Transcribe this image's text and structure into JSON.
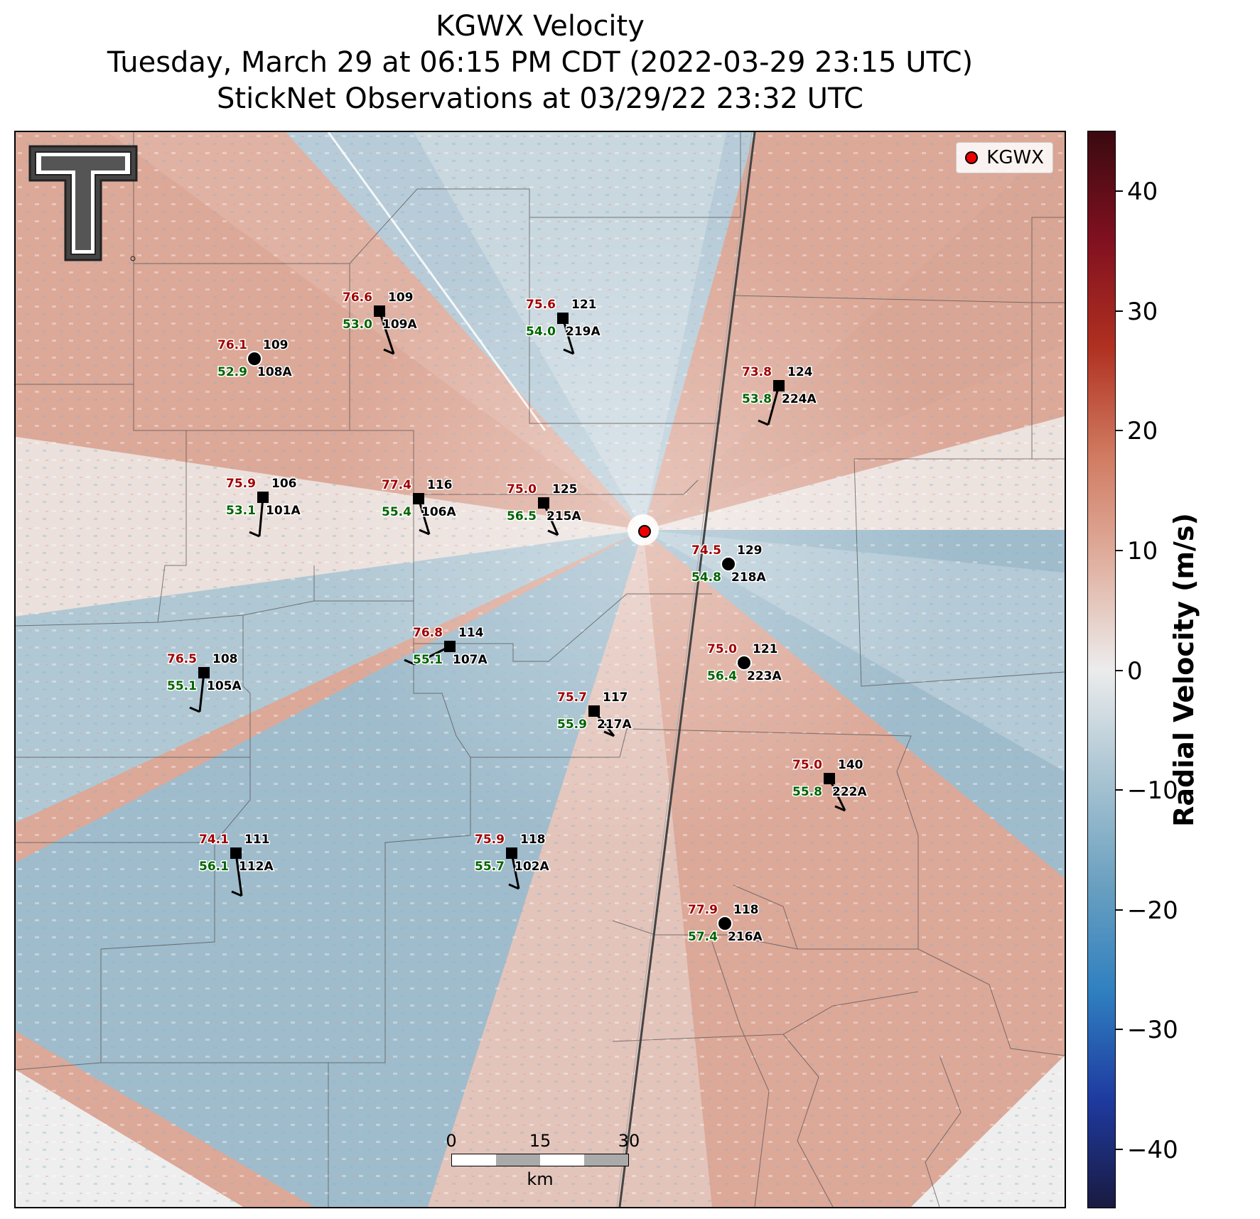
{
  "title": {
    "line1": "KGWX Velocity",
    "line2": "Tuesday, March 29 at 06:15 PM CDT (2022-03-29 23:15 UTC)",
    "line3": "StickNet Observations at 03/29/22 23:32 UTC"
  },
  "legend": {
    "radar_label": "KGWX",
    "marker_color": "#ee0000"
  },
  "colorbar": {
    "label": "Radial Velocity (m/s)",
    "min": -45,
    "max": 45,
    "ticks": [
      "40",
      "30",
      "20",
      "10",
      "0",
      "−10",
      "−20",
      "−30",
      "−40"
    ],
    "tick_values": [
      40,
      30,
      20,
      10,
      0,
      -10,
      -20,
      -30,
      -40
    ],
    "colors": [
      "#1a1a40",
      "#1e3aa0",
      "#2f7fc0",
      "#6aa0c0",
      "#a9c4d2",
      "#ececec",
      "#e0b0a0",
      "#d07a60",
      "#b03020",
      "#801020",
      "#3a0a10"
    ]
  },
  "scale_bar": {
    "labels": [
      "0",
      "15",
      "30"
    ],
    "unit": "km"
  },
  "stations": [
    {
      "id": "109A",
      "temp": "76.6",
      "dew": "53.0",
      "val": "109",
      "marker": "square"
    },
    {
      "id": "219A",
      "temp": "75.6",
      "dew": "54.0",
      "val": "121",
      "marker": "square"
    },
    {
      "id": "108A",
      "temp": "76.1",
      "dew": "52.9",
      "val": "109",
      "marker": "circle"
    },
    {
      "id": "224A",
      "temp": "73.8",
      "dew": "53.8",
      "val": "124",
      "marker": "square"
    },
    {
      "id": "101A",
      "temp": "75.9",
      "dew": "53.1",
      "val": "106",
      "marker": "square"
    },
    {
      "id": "106A",
      "temp": "77.4",
      "dew": "55.4",
      "val": "116",
      "marker": "square"
    },
    {
      "id": "215A",
      "temp": "75.0",
      "dew": "56.5",
      "val": "125",
      "marker": "square"
    },
    {
      "id": "218A",
      "temp": "74.5",
      "dew": "54.8",
      "val": "129",
      "marker": "circle"
    },
    {
      "id": "107A",
      "temp": "76.8",
      "dew": "55.1",
      "val": "114",
      "marker": "square"
    },
    {
      "id": "223A",
      "temp": "75.0",
      "dew": "56.4",
      "val": "121",
      "marker": "circle"
    },
    {
      "id": "105A",
      "temp": "76.5",
      "dew": "55.1",
      "val": "108",
      "marker": "square"
    },
    {
      "id": "217A",
      "temp": "75.7",
      "dew": "55.9",
      "val": "117",
      "marker": "square"
    },
    {
      "id": "222A",
      "temp": "75.0",
      "dew": "55.8",
      "val": "140",
      "marker": "square"
    },
    {
      "id": "112A",
      "temp": "74.1",
      "dew": "56.1",
      "val": "111",
      "marker": "square"
    },
    {
      "id": "102A",
      "temp": "75.9",
      "dew": "55.7",
      "val": "118",
      "marker": "square"
    },
    {
      "id": "216A",
      "temp": "77.9",
      "dew": "57.4",
      "val": "118",
      "marker": "circle"
    }
  ]
}
